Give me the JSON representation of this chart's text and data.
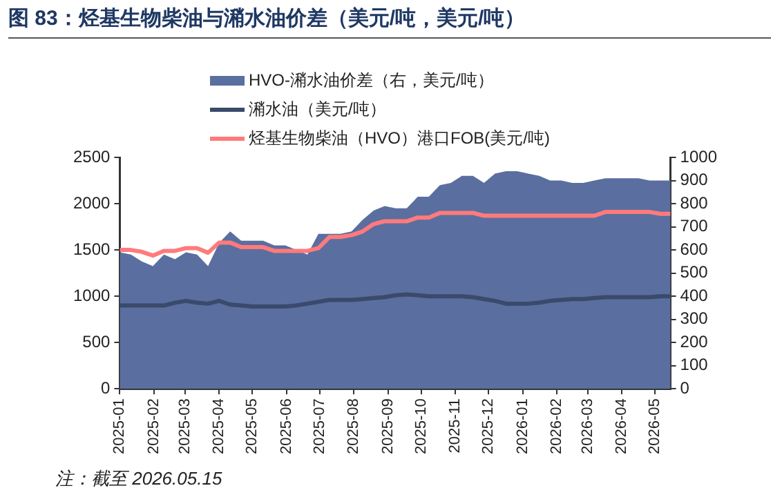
{
  "chart_data": {
    "type": "line",
    "title": "图 83：烃基生物柴油与潲水油价差（美元/吨，美元/吨）",
    "x": [
      "2025-01-01",
      "2025-01-11",
      "2025-01-21",
      "2025-01-31",
      "2025-02-10",
      "2025-02-20",
      "2025-03-02",
      "2025-03-12",
      "2025-03-22",
      "2025-04-01",
      "2025-04-11",
      "2025-04-21",
      "2025-05-01",
      "2025-05-11",
      "2025-05-21",
      "2025-05-31",
      "2025-06-10",
      "2025-06-20",
      "2025-06-30",
      "2025-07-10",
      "2025-07-20",
      "2025-07-30",
      "2025-08-09",
      "2025-08-19",
      "2025-08-29",
      "2025-09-08",
      "2025-09-18",
      "2025-09-28",
      "2025-10-08",
      "2025-10-18",
      "2025-10-28",
      "2025-11-07",
      "2025-11-17",
      "2025-11-27",
      "2025-12-07",
      "2025-12-17",
      "2025-12-27",
      "2026-01-06",
      "2026-01-16",
      "2026-01-26",
      "2026-02-05",
      "2026-02-15",
      "2026-02-25",
      "2026-03-07",
      "2026-03-17",
      "2026-03-27",
      "2026-04-06",
      "2026-04-16",
      "2026-04-26",
      "2026-05-06",
      "2026-05-15"
    ],
    "series": [
      {
        "name": "HVO-潲水油价差（右，美元/吨）",
        "type": "area",
        "axis": "y2",
        "color": "#5a6ea0",
        "values": [
          590,
          580,
          550,
          530,
          580,
          560,
          590,
          580,
          530,
          630,
          680,
          640,
          640,
          640,
          620,
          620,
          600,
          580,
          670,
          670,
          670,
          680,
          730,
          770,
          790,
          780,
          780,
          830,
          830,
          880,
          890,
          920,
          920,
          890,
          930,
          940,
          940,
          930,
          920,
          900,
          900,
          890,
          890,
          900,
          910,
          910,
          910,
          910,
          900,
          900,
          900
        ]
      },
      {
        "name": "潲水油（美元/吨）",
        "color": "#3a4a6b",
        "values": [
          900,
          900,
          900,
          900,
          900,
          930,
          950,
          930,
          920,
          950,
          910,
          900,
          890,
          890,
          890,
          890,
          900,
          920,
          940,
          960,
          960,
          960,
          970,
          980,
          990,
          1010,
          1020,
          1010,
          1000,
          1000,
          1000,
          1000,
          990,
          970,
          950,
          920,
          920,
          920,
          930,
          950,
          960,
          970,
          970,
          980,
          990,
          990,
          990,
          990,
          990,
          1000,
          1000
        ]
      },
      {
        "name": "烃基生物柴油（HVO）港口FOB(美元/吨)",
        "color": "#ff7b7b",
        "values": [
          1500,
          1500,
          1480,
          1440,
          1490,
          1490,
          1520,
          1520,
          1470,
          1580,
          1580,
          1530,
          1530,
          1530,
          1490,
          1490,
          1490,
          1490,
          1520,
          1640,
          1640,
          1660,
          1700,
          1780,
          1810,
          1810,
          1810,
          1850,
          1850,
          1900,
          1900,
          1900,
          1900,
          1870,
          1870,
          1870,
          1870,
          1870,
          1870,
          1870,
          1870,
          1870,
          1870,
          1870,
          1910,
          1910,
          1910,
          1910,
          1910,
          1890,
          1890
        ]
      }
    ],
    "xlim": [
      "2025-01-01",
      "2026-05-15"
    ],
    "xticks": [
      "2025-01",
      "2025-02",
      "2025-03",
      "2025-04",
      "2025-05",
      "2025-06",
      "2025-07",
      "2025-08",
      "2025-09",
      "2025-10",
      "2025-11",
      "2025-12",
      "2026-01",
      "2026-02",
      "2026-03",
      "2026-04",
      "2026-05"
    ],
    "ylim": [
      0,
      2500
    ],
    "yticks": [
      0,
      500,
      1000,
      1500,
      2000,
      2500
    ],
    "y2lim": [
      0,
      1000
    ],
    "y2ticks": [
      0,
      100,
      200,
      300,
      400,
      500,
      600,
      700,
      800,
      900,
      1000
    ],
    "legend": "top",
    "marker": "none",
    "line_style": "solid",
    "annotations": [
      "注：截至 2026.05.15"
    ]
  }
}
